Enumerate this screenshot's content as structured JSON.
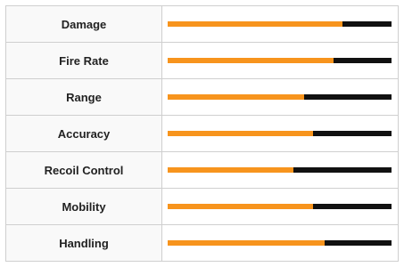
{
  "table": {
    "xlim": [
      0,
      100
    ],
    "rows": [
      {
        "label": "Damage",
        "value": 78
      },
      {
        "label": "Fire Rate",
        "value": 74
      },
      {
        "label": "Range",
        "value": 61
      },
      {
        "label": "Accuracy",
        "value": 65
      },
      {
        "label": "Recoil Control",
        "value": 56
      },
      {
        "label": "Mobility",
        "value": 65
      },
      {
        "label": "Handling",
        "value": 70
      }
    ]
  }
}
